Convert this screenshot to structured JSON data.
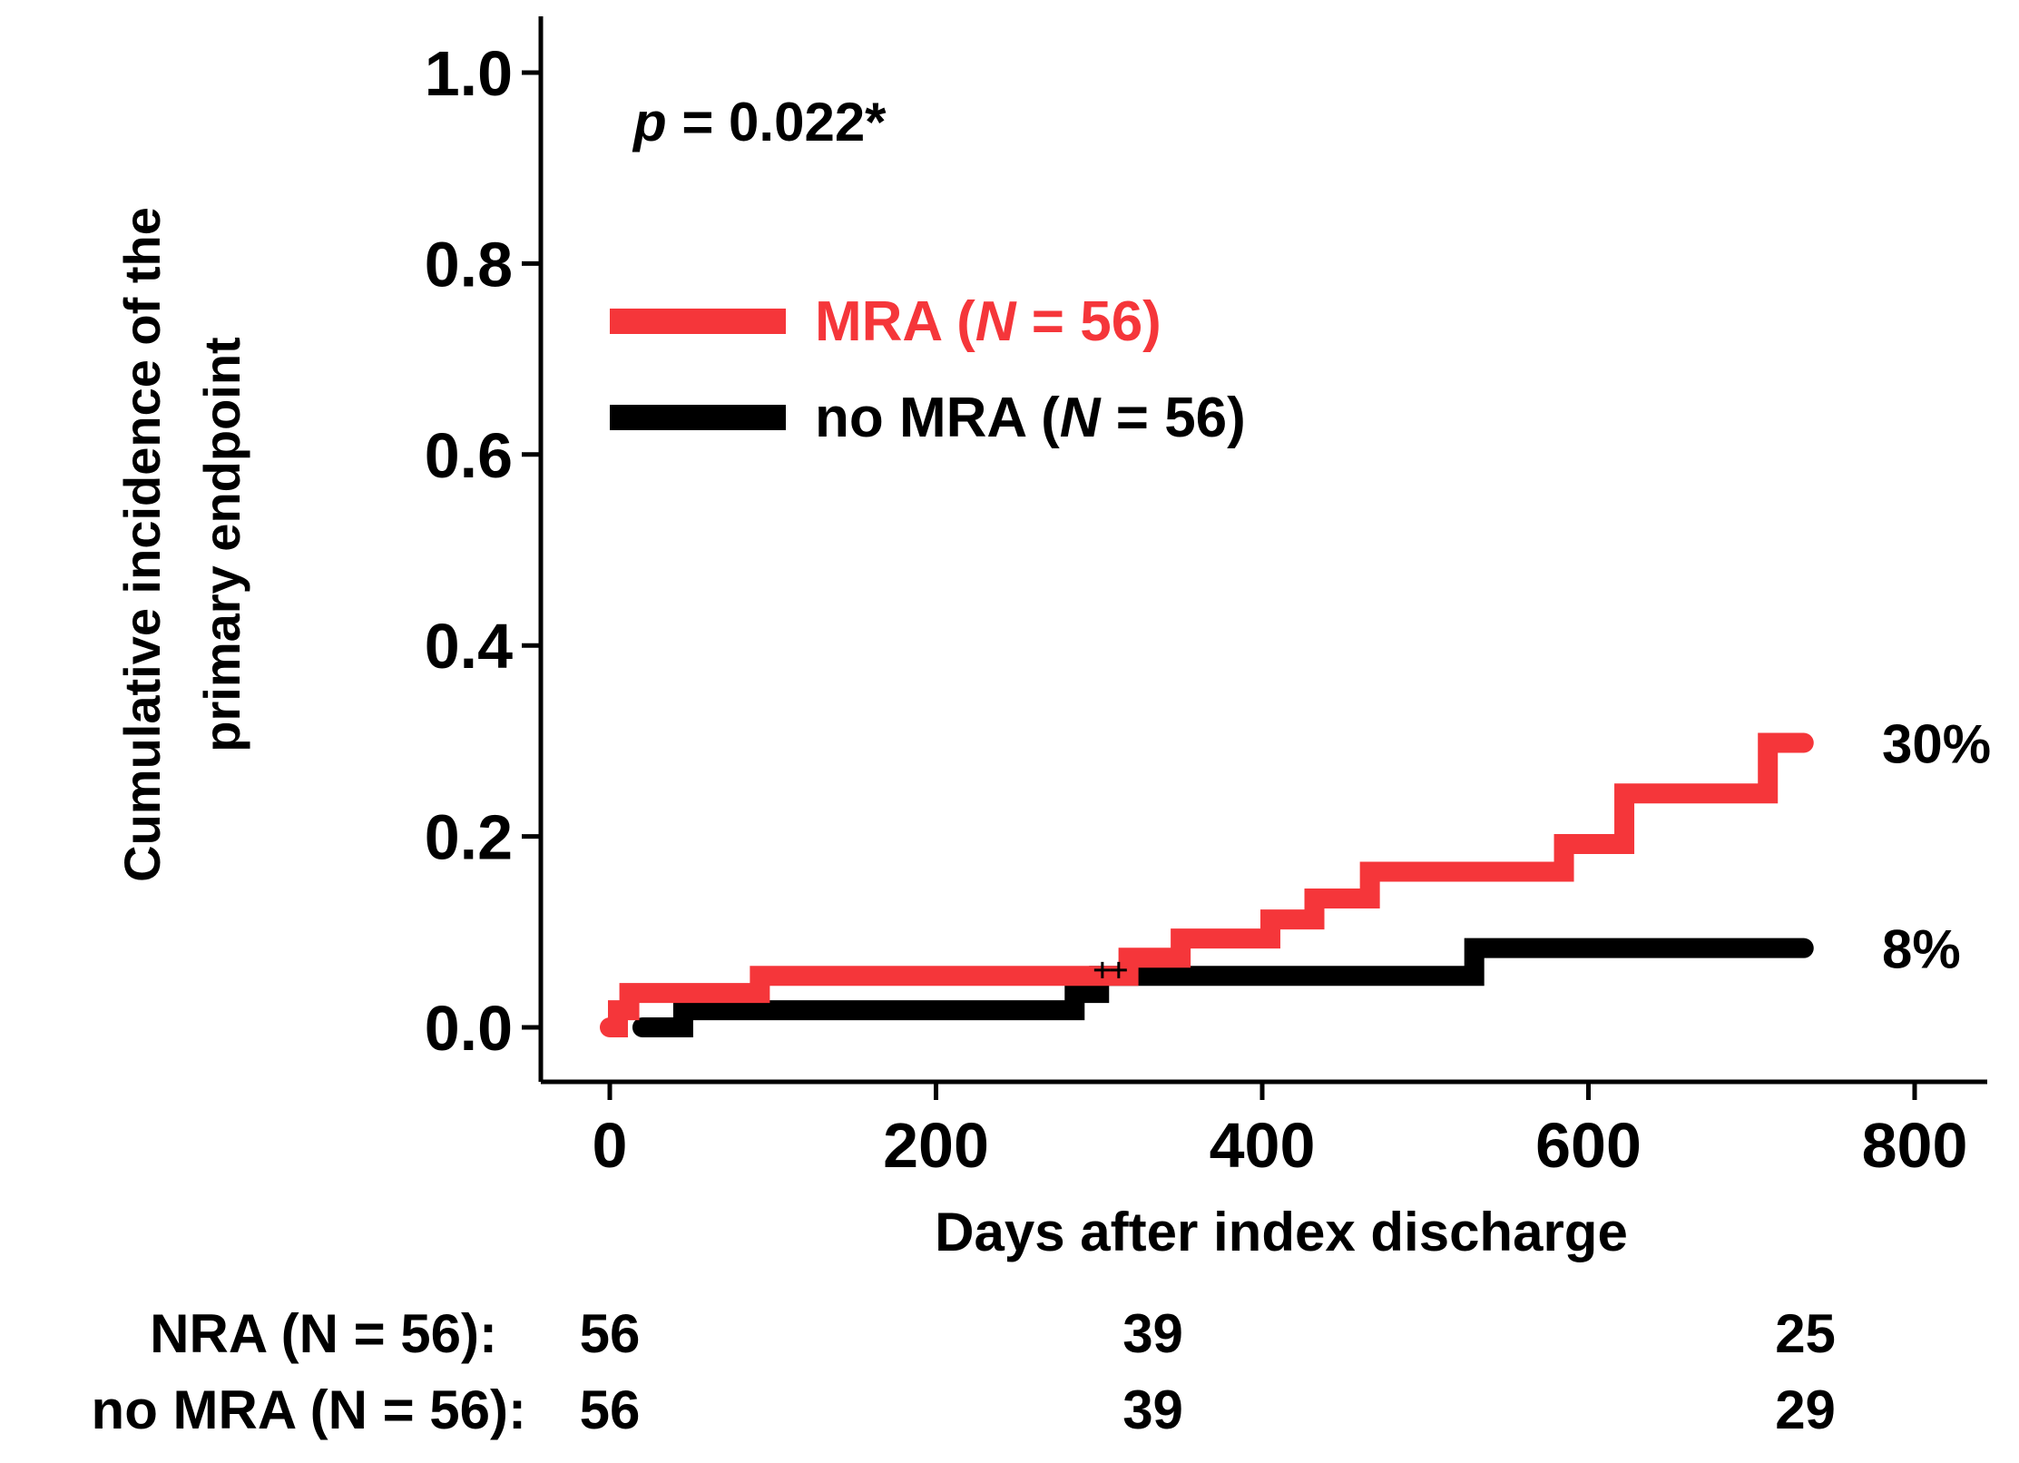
{
  "chart_data": {
    "type": "line",
    "title": "",
    "xlabel": "Days after index discharge",
    "ylabel_line1": "Cumulative incidence of the",
    "ylabel_line2": "primary endpoint",
    "xlim": [
      0,
      800
    ],
    "ylim": [
      0,
      1.0
    ],
    "x_ticks": [
      0,
      200,
      400,
      600,
      800
    ],
    "x_tick_labels": [
      "0",
      "200",
      "400",
      "600",
      "800"
    ],
    "y_ticks": [
      0,
      0.2,
      0.4,
      0.6,
      0.8,
      1.0
    ],
    "y_tick_labels": [
      "0.0",
      "0.2",
      "0.4",
      "0.6",
      "0.8",
      "1.0"
    ],
    "p_value": {
      "prefix": "p",
      "text": " = 0.022*"
    },
    "legend_position": "upper-left",
    "series": [
      {
        "name": "MRA (N = 56)",
        "legend_prefix": "MRA (",
        "legend_n": "N",
        "legend_suffix": " = 56)",
        "color": "#f5363a",
        "end_label": "30%",
        "end_value": 0.298,
        "steps": [
          [
            0,
            0
          ],
          [
            5,
            0.018
          ],
          [
            12,
            0.036
          ],
          [
            92,
            0.054
          ],
          [
            318,
            0.073
          ],
          [
            350,
            0.093
          ],
          [
            405,
            0.113
          ],
          [
            432,
            0.135
          ],
          [
            466,
            0.163
          ],
          [
            585,
            0.192
          ],
          [
            622,
            0.245
          ],
          [
            710,
            0.298
          ],
          [
            732,
            0.298
          ]
        ]
      },
      {
        "name": "no MRA (N = 56)",
        "legend_prefix": "no MRA (",
        "legend_n": "N",
        "legend_suffix": " = 56)",
        "color": "#000000",
        "end_label": "8%",
        "end_value": 0.083,
        "steps": [
          [
            20,
            0
          ],
          [
            45,
            0.018
          ],
          [
            285,
            0.036
          ],
          [
            300,
            0.054
          ],
          [
            530,
            0.083
          ],
          [
            732,
            0.083
          ]
        ]
      }
    ],
    "censor_marks_x": [
      302,
      312
    ],
    "risk_table": {
      "times": [
        0,
        333,
        733
      ],
      "rows": [
        {
          "label": "NRA (N = 56):",
          "values": [
            "56",
            "39",
            "25"
          ]
        },
        {
          "label": "no MRA (N = 56):",
          "values": [
            "56",
            "39",
            "29"
          ]
        }
      ]
    }
  }
}
